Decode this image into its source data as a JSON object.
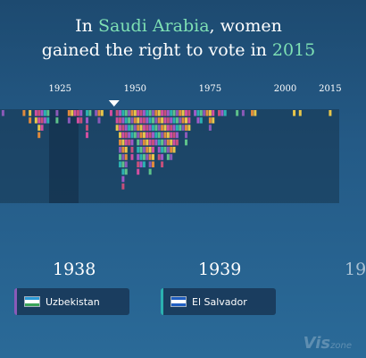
{
  "headline": {
    "line1_pre": "In ",
    "country": "Saudi Arabia",
    "line1_post": ", women",
    "line2_pre": "gained the right to vote in ",
    "year": "2015"
  },
  "chart_data": {
    "type": "bar",
    "xlabel": "",
    "ylabel": "",
    "xlim": [
      1905,
      2018
    ],
    "x_ticks": [
      1925,
      1950,
      1975,
      2000,
      2015
    ],
    "selected_marker_year": 1943,
    "columns": [
      {
        "year": 1906,
        "count": 1
      },
      {
        "year": 1913,
        "count": 1
      },
      {
        "year": 1915,
        "count": 2
      },
      {
        "year": 1917,
        "count": 2
      },
      {
        "year": 1918,
        "count": 4
      },
      {
        "year": 1919,
        "count": 3
      },
      {
        "year": 1920,
        "count": 2
      },
      {
        "year": 1921,
        "count": 2
      },
      {
        "year": 1924,
        "count": 2
      },
      {
        "year": 1928,
        "count": 2
      },
      {
        "year": 1929,
        "count": 1
      },
      {
        "year": 1930,
        "count": 1
      },
      {
        "year": 1931,
        "count": 2
      },
      {
        "year": 1932,
        "count": 2
      },
      {
        "year": 1934,
        "count": 4
      },
      {
        "year": 1935,
        "count": 1
      },
      {
        "year": 1937,
        "count": 1
      },
      {
        "year": 1938,
        "count": 2
      },
      {
        "year": 1939,
        "count": 1
      },
      {
        "year": 1942,
        "count": 1
      },
      {
        "year": 1944,
        "count": 3
      },
      {
        "year": 1945,
        "count": 8
      },
      {
        "year": 1946,
        "count": 11
      },
      {
        "year": 1947,
        "count": 9
      },
      {
        "year": 1948,
        "count": 5
      },
      {
        "year": 1949,
        "count": 7
      },
      {
        "year": 1950,
        "count": 4
      },
      {
        "year": 1951,
        "count": 9
      },
      {
        "year": 1952,
        "count": 8
      },
      {
        "year": 1953,
        "count": 8
      },
      {
        "year": 1954,
        "count": 7
      },
      {
        "year": 1955,
        "count": 9
      },
      {
        "year": 1956,
        "count": 8
      },
      {
        "year": 1957,
        "count": 5
      },
      {
        "year": 1958,
        "count": 7
      },
      {
        "year": 1959,
        "count": 8
      },
      {
        "year": 1960,
        "count": 6
      },
      {
        "year": 1961,
        "count": 7
      },
      {
        "year": 1962,
        "count": 7
      },
      {
        "year": 1963,
        "count": 6
      },
      {
        "year": 1964,
        "count": 5
      },
      {
        "year": 1965,
        "count": 3
      },
      {
        "year": 1966,
        "count": 3
      },
      {
        "year": 1967,
        "count": 5
      },
      {
        "year": 1968,
        "count": 3
      },
      {
        "year": 1970,
        "count": 1
      },
      {
        "year": 1971,
        "count": 2
      },
      {
        "year": 1972,
        "count": 2
      },
      {
        "year": 1973,
        "count": 1
      },
      {
        "year": 1974,
        "count": 1
      },
      {
        "year": 1975,
        "count": 3
      },
      {
        "year": 1976,
        "count": 2
      },
      {
        "year": 1978,
        "count": 1
      },
      {
        "year": 1979,
        "count": 1
      },
      {
        "year": 1980,
        "count": 1
      },
      {
        "year": 1984,
        "count": 1
      },
      {
        "year": 1986,
        "count": 1
      },
      {
        "year": 1989,
        "count": 1
      },
      {
        "year": 1990,
        "count": 1
      },
      {
        "year": 2003,
        "count": 1
      },
      {
        "year": 2005,
        "count": 1
      },
      {
        "year": 2015,
        "count": 1
      }
    ],
    "colors": [
      "#8a5ab8",
      "#d24fa0",
      "#2bb0b0",
      "#e08a3c",
      "#c84f7a",
      "#5ec28a",
      "#e8c64a",
      "#a05ac8"
    ],
    "highlight_color": "#e8c64a"
  },
  "timeline": [
    {
      "year": "1938",
      "country": "Uzbekistan",
      "accent": "#8a5ab8",
      "flag": [
        "#2a9ad8",
        "#ffffff",
        "#3aa55a"
      ]
    },
    {
      "year": "1939",
      "country": "El Salvador",
      "accent": "#2bb0b0",
      "flag": [
        "#1f5ec2",
        "#ffffff",
        "#1f5ec2"
      ]
    },
    {
      "year": "19"
    }
  ],
  "watermark": {
    "main": "Vis",
    "sub": "zone"
  }
}
